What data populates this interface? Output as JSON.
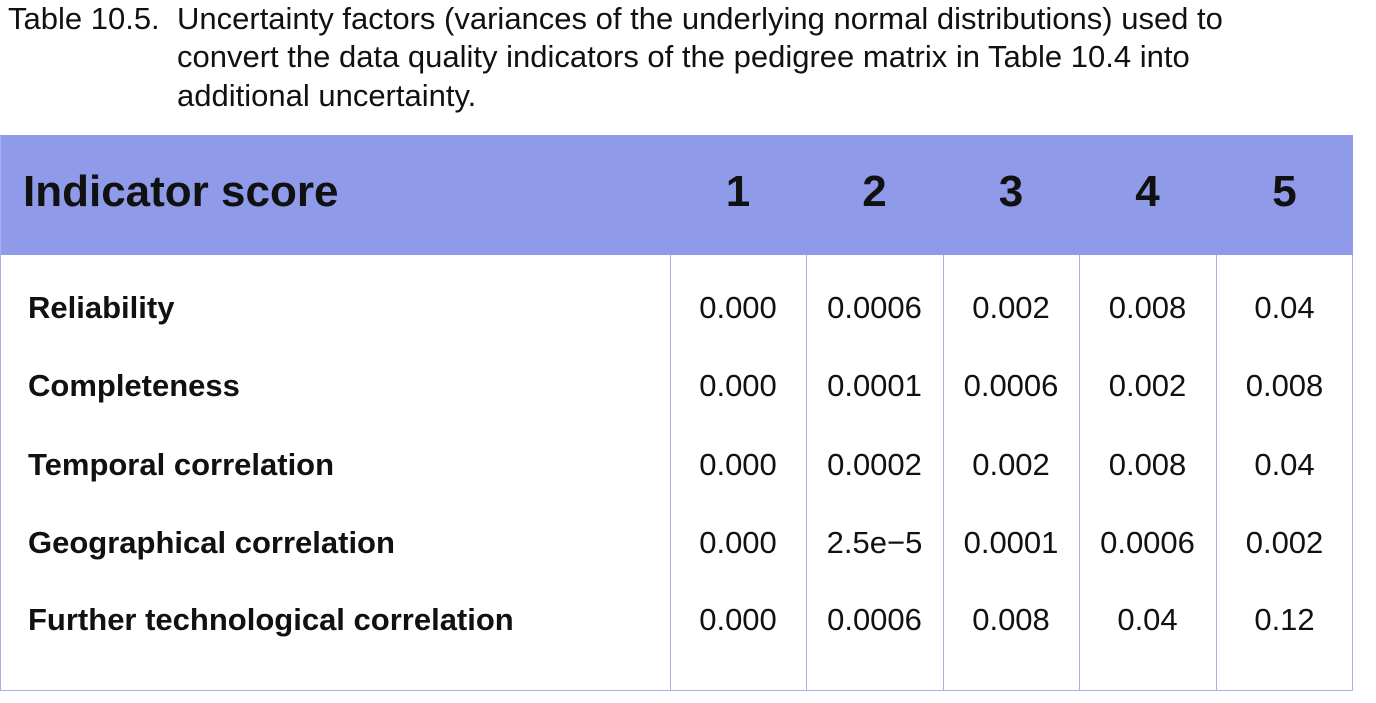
{
  "caption": {
    "label": "Table 10.5.",
    "lines": [
      "Uncertainty factors (variances of the underlying normal distributions) used to",
      "convert the data quality indicators of the pedigree matrix in Table 10.4 into",
      "additional uncertainty."
    ]
  },
  "table": {
    "header": [
      "Indicator score",
      "1",
      "2",
      "3",
      "4",
      "5"
    ],
    "rows": [
      [
        "Reliability",
        "0.000",
        "0.0006",
        "0.002",
        "0.008",
        "0.04"
      ],
      [
        "Completeness",
        "0.000",
        "0.0001",
        "0.0006",
        "0.002",
        "0.008"
      ],
      [
        "Temporal correlation",
        "0.000",
        "0.0002",
        "0.002",
        "0.008",
        "0.04"
      ],
      [
        "Geographical correlation",
        "0.000",
        "2.5e−5",
        "0.0001",
        "0.0006",
        "0.002"
      ],
      [
        "Further technological correlation",
        "0.000",
        "0.0006",
        "0.008",
        "0.04",
        "0.12"
      ]
    ]
  }
}
